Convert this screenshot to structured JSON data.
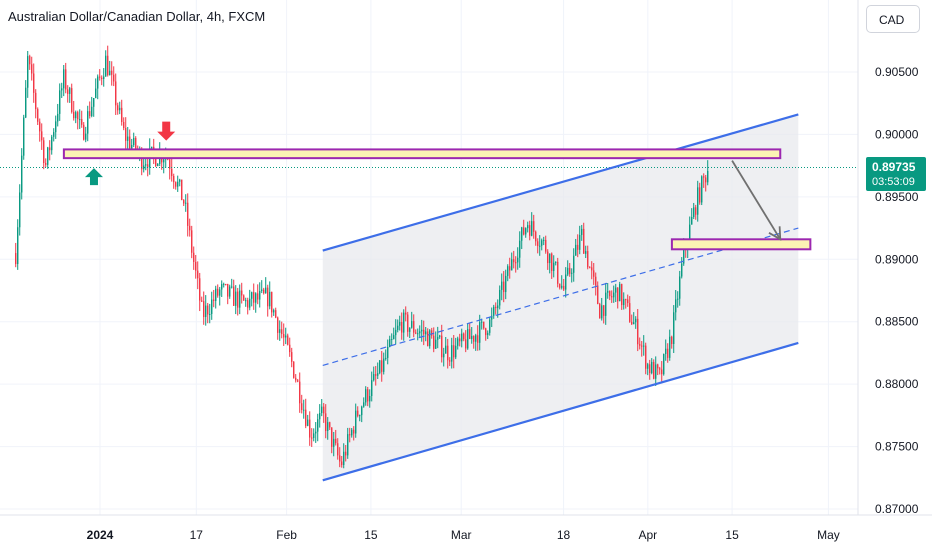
{
  "header": {
    "title": "Australian Dollar/Canadian Dollar, 4h, FXCM",
    "currency_button": "CAD"
  },
  "last_price": {
    "value": "0.89735",
    "countdown": "03:53:09",
    "color": "#089981"
  },
  "colors": {
    "up": "#089981",
    "down": "#f23645",
    "channel": "#3d6ee8",
    "zone_fill": "#fbf3b4",
    "zone_border": "#9c27b0",
    "grid": "#f0f3fa",
    "arrow_up": "#089981",
    "arrow_down": "#f23645"
  },
  "chart_data": {
    "type": "candlestick",
    "symbol": "Australian Dollar/Canadian Dollar",
    "interval": "4h",
    "y_axis": {
      "range": [
        0.8695,
        0.9095
      ],
      "ticks": [
        "0.90500",
        "0.90000",
        "0.89500",
        "0.89000",
        "0.88500",
        "0.88000",
        "0.87500",
        "0.87000"
      ]
    },
    "x_axis": {
      "ticks": [
        "2024",
        "17",
        "Feb",
        "15",
        "Mar",
        "18",
        "Apr",
        "15",
        "May"
      ]
    },
    "path_points": [
      [
        "2023-12-18",
        0.8905
      ],
      [
        "2023-12-20",
        0.906
      ],
      [
        "2023-12-23",
        0.8975
      ],
      [
        "2023-12-26",
        0.9045
      ],
      [
        "2023-12-29",
        0.9
      ],
      [
        "2024-01-02",
        0.906
      ],
      [
        "2024-01-05",
        0.9
      ],
      [
        "2024-01-08",
        0.898
      ],
      [
        "2024-01-12",
        0.8985
      ],
      [
        "2024-01-15",
        0.8945
      ],
      [
        "2024-01-18",
        0.8855
      ],
      [
        "2024-01-21",
        0.8875
      ],
      [
        "2024-01-25",
        0.8865
      ],
      [
        "2024-01-29",
        0.887
      ],
      [
        "2024-02-02",
        0.8815
      ],
      [
        "2024-02-05",
        0.876
      ],
      [
        "2024-02-07",
        0.8775
      ],
      [
        "2024-02-10",
        0.8735
      ],
      [
        "2024-02-13",
        0.878
      ],
      [
        "2024-02-17",
        0.8815
      ],
      [
        "2024-02-20",
        0.885
      ],
      [
        "2024-02-24",
        0.884
      ],
      [
        "2024-02-28",
        0.8825
      ],
      [
        "2024-03-02",
        0.8835
      ],
      [
        "2024-03-06",
        0.885
      ],
      [
        "2024-03-10",
        0.8905
      ],
      [
        "2024-03-12",
        0.893
      ],
      [
        "2024-03-15",
        0.891
      ],
      [
        "2024-03-18",
        0.8875
      ],
      [
        "2024-03-21",
        0.892
      ],
      [
        "2024-03-24",
        0.886
      ],
      [
        "2024-03-27",
        0.8875
      ],
      [
        "2024-03-30",
        0.8845
      ],
      [
        "2024-04-01",
        0.8815
      ],
      [
        "2024-04-03",
        0.8805
      ],
      [
        "2024-04-05",
        0.884
      ],
      [
        "2024-04-07",
        0.8905
      ],
      [
        "2024-04-09",
        0.8945
      ],
      [
        "2024-04-11",
        0.8973
      ]
    ],
    "channel": {
      "upper": [
        [
          "2024-02-07",
          0.8907
        ],
        [
          "2024-04-26",
          0.9016
        ]
      ],
      "middle": [
        [
          "2024-02-07",
          0.8815
        ],
        [
          "2024-04-26",
          0.8925
        ]
      ],
      "lower": [
        [
          "2024-02-07",
          0.8723
        ],
        [
          "2024-04-26",
          0.8833
        ]
      ]
    },
    "resistance_zone": {
      "from": "2023-12-26",
      "to": "2024-04-23",
      "top": 0.8988,
      "bottom": 0.8981
    },
    "support_zone": {
      "from": "2024-04-05",
      "to": "2024-04-28",
      "top": 0.8916,
      "bottom": 0.8908
    },
    "projection_arrow": [
      [
        "2024-04-15",
        0.8979
      ],
      [
        "2024-04-23",
        0.8916
      ]
    ],
    "markers": [
      {
        "type": "up-arrow",
        "date": "2023-12-31",
        "price": 0.8973
      },
      {
        "type": "down-arrow",
        "date": "2024-01-12",
        "price": 0.8995
      }
    ],
    "last_price_line": 0.89735
  }
}
